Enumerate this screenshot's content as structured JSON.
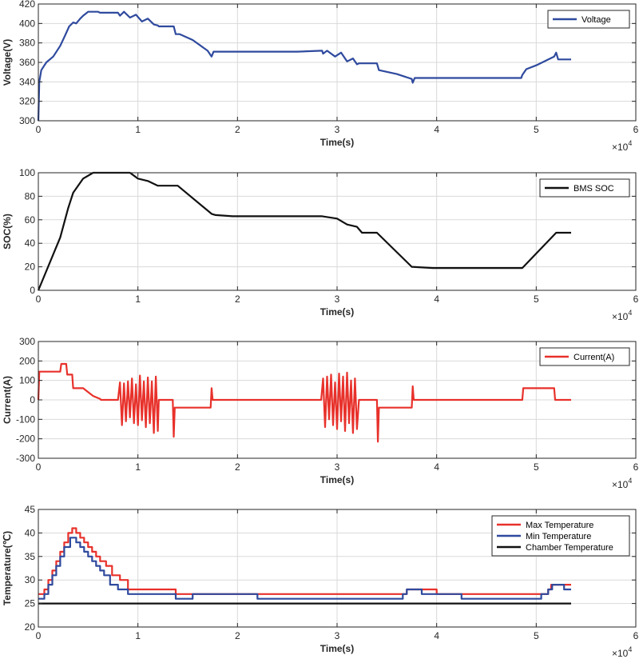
{
  "chart_data": [
    {
      "type": "line",
      "xlabel": "Time(s)",
      "ylabel": "Voltage(V)",
      "xlim": [
        0,
        60000
      ],
      "ylim": [
        300,
        420
      ],
      "xticks": [
        0,
        10000,
        20000,
        30000,
        40000,
        50000,
        60000
      ],
      "xtick_labels": [
        "0",
        "1",
        "2",
        "3",
        "4",
        "5",
        "6"
      ],
      "yticks": [
        300,
        320,
        340,
        360,
        380,
        400,
        420
      ],
      "ytick_labels": [
        "300",
        "320",
        "340",
        "360",
        "380",
        "400",
        "420"
      ],
      "x_exponent": "×10",
      "x_exponent_power": "4",
      "grid": true,
      "legend_position": "top-right",
      "series": [
        {
          "name": "Voltage",
          "color": "#2f4a9e",
          "x": [
            0,
            100,
            300,
            800,
            1500,
            2200,
            2700,
            3100,
            3500,
            3800,
            4200,
            4500,
            5000,
            6000,
            6200,
            8000,
            8200,
            8600,
            9200,
            9800,
            10400,
            11000,
            11600,
            12000,
            12100,
            13600,
            13800,
            14200,
            15500,
            17000,
            17400,
            17600,
            18500,
            22000,
            26000,
            28500,
            28600,
            29000,
            29800,
            30400,
            31000,
            31600,
            32000,
            32200,
            34000,
            34200,
            36000,
            37500,
            37600,
            37800,
            40000,
            44000,
            48500,
            48600,
            49000,
            50000,
            51000,
            51800,
            52000,
            52200,
            53500
          ],
          "y": [
            300,
            340,
            352,
            360,
            366,
            377,
            388,
            397,
            401,
            400,
            405,
            408,
            412,
            412,
            411,
            411,
            408,
            412,
            406,
            409,
            402,
            405,
            399,
            398,
            397,
            397,
            389,
            389,
            383,
            372,
            366,
            371,
            371,
            371,
            371,
            372,
            369,
            372,
            366,
            370,
            361,
            364,
            358,
            359,
            359,
            352,
            348,
            343,
            339,
            344,
            344,
            344,
            344,
            347,
            353,
            357,
            362,
            366,
            370,
            363,
            363
          ]
        }
      ]
    },
    {
      "type": "line",
      "xlabel": "Time(s)",
      "ylabel": "SOC(%)",
      "xlim": [
        0,
        60000
      ],
      "ylim": [
        0,
        100
      ],
      "xticks": [
        0,
        10000,
        20000,
        30000,
        40000,
        50000,
        60000
      ],
      "xtick_labels": [
        "0",
        "1",
        "2",
        "3",
        "4",
        "5",
        "6"
      ],
      "yticks": [
        0,
        20,
        40,
        60,
        80,
        100
      ],
      "ytick_labels": [
        "0",
        "20",
        "40",
        "60",
        "80",
        "100"
      ],
      "x_exponent": "×10",
      "x_exponent_power": "4",
      "grid": true,
      "legend_position": "top-right",
      "series": [
        {
          "name": "BMS SOC",
          "color": "#111111",
          "x": [
            0,
            2200,
            3000,
            3500,
            4500,
            5500,
            6000,
            9200,
            10000,
            11000,
            12000,
            14000,
            17400,
            17800,
            19500,
            26000,
            28500,
            30000,
            31000,
            32000,
            32500,
            34000,
            37500,
            39600,
            48600,
            52000,
            53500
          ],
          "y": [
            0,
            45,
            70,
            83,
            95,
            100,
            100,
            100,
            95,
            93,
            89,
            89,
            65,
            64,
            63,
            63,
            63,
            61,
            56,
            54,
            49,
            49,
            20,
            19,
            19,
            49,
            49
          ]
        }
      ]
    },
    {
      "type": "line",
      "xlabel": "Time(s)",
      "ylabel": "Current(A)",
      "xlim": [
        0,
        60000
      ],
      "ylim": [
        -300,
        300
      ],
      "xticks": [
        0,
        10000,
        20000,
        30000,
        40000,
        50000,
        60000
      ],
      "xtick_labels": [
        "0",
        "1",
        "2",
        "3",
        "4",
        "5",
        "6"
      ],
      "yticks": [
        -300,
        -200,
        -100,
        0,
        100,
        200,
        300
      ],
      "ytick_labels": [
        "-300",
        "-200",
        "-100",
        "0",
        "100",
        "200",
        "300"
      ],
      "x_exponent": "×10",
      "x_exponent_power": "4",
      "grid": true,
      "legend_position": "top-right",
      "series": [
        {
          "name": "Current(A)",
          "color": "#e8312b",
          "x": [
            0,
            100,
            2200,
            2300,
            2800,
            2900,
            3400,
            3500,
            4500,
            5000,
            5500,
            6200,
            6300,
            8000,
            8200,
            8400,
            8600,
            8800,
            9000,
            9200,
            9400,
            9600,
            9800,
            10000,
            10200,
            10400,
            10600,
            10800,
            11000,
            11200,
            11400,
            11600,
            11800,
            12000,
            12100,
            13500,
            13600,
            13700,
            17300,
            17400,
            17500,
            28400,
            28600,
            28800,
            29000,
            29200,
            29400,
            29600,
            29800,
            30000,
            30200,
            30400,
            30600,
            30800,
            31000,
            31200,
            31400,
            31600,
            31800,
            32000,
            32200,
            34000,
            34100,
            34200,
            37500,
            37600,
            37700,
            48600,
            48700,
            51800,
            51900,
            53500
          ],
          "y": [
            0,
            145,
            145,
            185,
            185,
            130,
            130,
            60,
            60,
            40,
            20,
            5,
            0,
            0,
            90,
            -130,
            85,
            -110,
            95,
            -90,
            110,
            -120,
            80,
            -130,
            125,
            -105,
            95,
            -140,
            115,
            -120,
            95,
            -170,
            120,
            -160,
            0,
            0,
            -190,
            -40,
            -40,
            60,
            0,
            0,
            110,
            -140,
            120,
            -100,
            130,
            -130,
            90,
            -150,
            135,
            -110,
            120,
            -160,
            140,
            -120,
            100,
            -170,
            110,
            -150,
            0,
            0,
            -215,
            -40,
            -40,
            70,
            0,
            0,
            60,
            60,
            0,
            0
          ]
        }
      ]
    },
    {
      "type": "line",
      "xlabel": "Time(s)",
      "ylabel": "Temperature(℃)",
      "xlim": [
        0,
        60000
      ],
      "ylim": [
        20,
        45
      ],
      "xticks": [
        0,
        10000,
        20000,
        30000,
        40000,
        50000,
        60000
      ],
      "xtick_labels": [
        "0",
        "1",
        "2",
        "3",
        "4",
        "5",
        "6"
      ],
      "yticks": [
        20,
        25,
        30,
        35,
        40,
        45
      ],
      "ytick_labels": [
        "20",
        "25",
        "30",
        "35",
        "40",
        "45"
      ],
      "x_exponent": "×10",
      "x_exponent_power": "4",
      "grid": true,
      "legend_position": "top-right",
      "series": [
        {
          "name": "Max Temperature",
          "color": "#e8312b",
          "step": true,
          "x": [
            0,
            600,
            1000,
            1400,
            1800,
            2200,
            2600,
            3000,
            3400,
            3800,
            4200,
            4600,
            5000,
            5400,
            5800,
            6200,
            6800,
            7400,
            8200,
            9000,
            13800,
            15500,
            22000,
            36600,
            37000,
            38500,
            40000,
            50000,
            50500,
            51200,
            51500,
            52400,
            53500
          ],
          "y": [
            27,
            28,
            30,
            32,
            34,
            36,
            38,
            40,
            41,
            40,
            39,
            38,
            37,
            36,
            35,
            34,
            33,
            31,
            30,
            28,
            27,
            27,
            27,
            27,
            28,
            28,
            27,
            27,
            27,
            28,
            29,
            29,
            29
          ]
        },
        {
          "name": "Min Temperature",
          "color": "#2f4a9e",
          "step": true,
          "x": [
            0,
            600,
            1000,
            1400,
            1800,
            2200,
            2600,
            3200,
            3800,
            4200,
            4600,
            5000,
            5400,
            5800,
            6200,
            6600,
            7200,
            8000,
            9000,
            13800,
            15500,
            22000,
            36600,
            37000,
            38500,
            42500,
            50000,
            50500,
            51200,
            51600,
            52800,
            53500
          ],
          "y": [
            26,
            27,
            29,
            31,
            33,
            35,
            37,
            39,
            38,
            37,
            36,
            35,
            34,
            33,
            32,
            31,
            29,
            28,
            27,
            26,
            27,
            26,
            27,
            28,
            27,
            26,
            26,
            27,
            28,
            29,
            28,
            28
          ]
        },
        {
          "name": "Chamber Temperature",
          "color": "#111111",
          "step": false,
          "x": [
            0,
            53500
          ],
          "y": [
            25,
            25
          ]
        }
      ]
    }
  ]
}
